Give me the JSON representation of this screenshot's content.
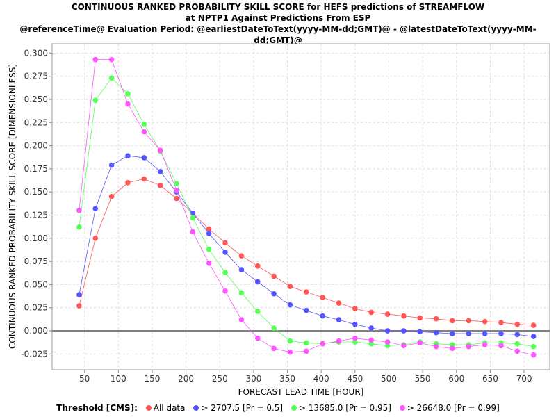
{
  "chart_data": {
    "type": "line",
    "title_lines": [
      "CONTINUOUS RANKED PROBABILITY SKILL SCORE for HEFS predictions of STREAMFLOW",
      "at NPTP1 Against Predictions From ESP",
      "@referenceTime@ Evaluation Period: @earliestDateToText(yyyy-MM-dd;GMT)@ - @latestDateToText(yyyy-MM-dd;GMT)@"
    ],
    "xlabel": "FORECAST LEAD TIME [HOUR]",
    "ylabel": "CONTINUOUS RANKED PROBABILITY SKILL SCORE [DIMENSIONLESS]",
    "xlim": [
      2,
      738
    ],
    "ylim": [
      -0.042,
      0.31
    ],
    "x_ticks": [
      50,
      100,
      150,
      200,
      250,
      300,
      350,
      400,
      450,
      500,
      550,
      600,
      650,
      700
    ],
    "y_ticks": [
      -0.025,
      0.0,
      0.025,
      0.05,
      0.075,
      0.1,
      0.125,
      0.15,
      0.175,
      0.2,
      0.225,
      0.25,
      0.275,
      0.3
    ],
    "y_tick_labels": [
      "-0.025",
      "0.000",
      "0.025",
      "0.050",
      "0.075",
      "0.100",
      "0.125",
      "0.150",
      "0.175",
      "0.200",
      "0.225",
      "0.250",
      "0.275",
      "0.300"
    ],
    "grid": true,
    "legend_position": "bottom",
    "x": [
      42,
      66,
      90,
      114,
      138,
      162,
      186,
      210,
      234,
      258,
      282,
      306,
      330,
      354,
      378,
      402,
      426,
      450,
      474,
      498,
      522,
      546,
      570,
      594,
      618,
      642,
      666,
      690,
      714
    ],
    "series": [
      {
        "name": "All data",
        "color": "#ff5555",
        "values": [
          0.027,
          0.1,
          0.145,
          0.16,
          0.164,
          0.157,
          0.143,
          0.127,
          0.11,
          0.095,
          0.081,
          0.07,
          0.059,
          0.048,
          0.042,
          0.036,
          0.03,
          0.024,
          0.02,
          0.018,
          0.016,
          0.014,
          0.013,
          0.011,
          0.011,
          0.01,
          0.009,
          0.007,
          0.006
        ]
      },
      {
        "name": "> 2707.5 [Pr = 0.5]",
        "color": "#5555ff",
        "values": [
          0.039,
          0.132,
          0.179,
          0.189,
          0.187,
          0.172,
          0.15,
          0.127,
          0.105,
          0.085,
          0.066,
          0.053,
          0.04,
          0.028,
          0.022,
          0.016,
          0.012,
          0.007,
          0.003,
          0.0,
          0.0,
          -0.001,
          -0.002,
          -0.003,
          -0.003,
          -0.003,
          -0.003,
          -0.004,
          -0.006
        ]
      },
      {
        "name": "> 13685.0 [Pr = 0.95]",
        "color": "#55ff55",
        "values": [
          0.112,
          0.249,
          0.273,
          0.256,
          0.223,
          0.194,
          0.159,
          0.122,
          0.088,
          0.063,
          0.041,
          0.021,
          0.003,
          -0.011,
          -0.013,
          -0.014,
          -0.012,
          -0.012,
          -0.014,
          -0.016,
          -0.015,
          -0.012,
          -0.014,
          -0.015,
          -0.015,
          -0.013,
          -0.013,
          -0.014,
          -0.017
        ]
      },
      {
        "name": "> 26648.0 [Pr = 0.99]",
        "color": "#ff55ff",
        "values": [
          0.13,
          0.293,
          0.293,
          0.245,
          0.215,
          0.195,
          0.152,
          0.107,
          0.073,
          0.043,
          0.012,
          -0.008,
          -0.019,
          -0.023,
          -0.022,
          -0.014,
          -0.011,
          -0.008,
          -0.01,
          -0.012,
          -0.016,
          -0.013,
          -0.017,
          -0.019,
          -0.017,
          -0.015,
          -0.016,
          -0.022,
          -0.026
        ]
      }
    ]
  },
  "legend": {
    "label": "Threshold [CMS]:"
  }
}
